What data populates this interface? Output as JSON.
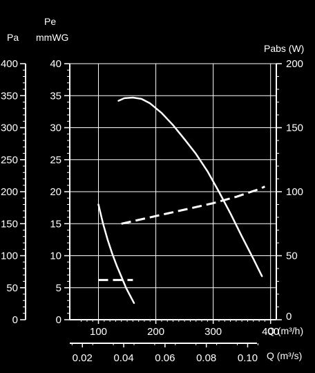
{
  "chart_data": {
    "type": "line",
    "colors": {
      "background": "#000000",
      "foreground": "#ffffff"
    },
    "grid": true,
    "axes": {
      "x_flow_m3h": {
        "label": "Q (m³/h)",
        "range": [
          50,
          410
        ],
        "ticks": [
          100,
          200,
          300,
          400
        ],
        "tick_labels": [
          "100",
          "200",
          "300",
          "400"
        ]
      },
      "x_flow_m3s": {
        "label": "Q (m³/s)",
        "ticks": [
          0.02,
          0.04,
          0.06,
          0.08,
          0.1
        ],
        "tick_labels": [
          "0.02",
          "0.04",
          "0.06",
          "0.08",
          "0.10"
        ]
      },
      "y_pressure_pa": {
        "label": "Pa",
        "range": [
          0,
          400
        ],
        "ticks": [
          0,
          50,
          100,
          150,
          200,
          250,
          300,
          350,
          400
        ],
        "tick_labels": [
          "0",
          "50",
          "100",
          "150",
          "200",
          "250",
          "300",
          "350",
          "400"
        ]
      },
      "y_pressure_mmwg": {
        "label_top": "Pe",
        "label": "mmWG",
        "range": [
          0,
          40
        ],
        "ticks": [
          0,
          5,
          10,
          15,
          20,
          25,
          30,
          35,
          40
        ],
        "tick_labels": [
          "0",
          "5",
          "10",
          "15",
          "20",
          "25",
          "30",
          "35",
          "40"
        ]
      },
      "y_power_w": {
        "label": "Pabs (W)",
        "range": [
          0,
          200
        ],
        "ticks": [
          0,
          50,
          100,
          150,
          200
        ],
        "tick_labels": [
          "0",
          "50",
          "100",
          "150",
          "200"
        ]
      }
    },
    "series": [
      {
        "style": "solid",
        "axis": "y_pressure_mmwg",
        "x": [
          135,
          145,
          160,
          175,
          190,
          210,
          230,
          250,
          270,
          290,
          310,
          330,
          350,
          370,
          385
        ],
        "y": [
          34.2,
          34.6,
          34.7,
          34.5,
          33.8,
          32.3,
          30.4,
          28.2,
          25.9,
          23.2,
          20.0,
          16.6,
          13.0,
          9.5,
          6.8
        ]
      },
      {
        "style": "dashed",
        "axis": "y_power_w",
        "x": [
          140,
          180,
          220,
          260,
          300,
          340,
          380,
          390
        ],
        "y": [
          75,
          79,
          83,
          87,
          91,
          96,
          102,
          104
        ]
      },
      {
        "style": "solid",
        "axis": "y_pressure_mmwg",
        "x": [
          100,
          108,
          116,
          124,
          132,
          140,
          148,
          155,
          162
        ],
        "y": [
          18.0,
          15.0,
          12.5,
          10.3,
          8.4,
          6.7,
          5.0,
          3.8,
          2.6
        ]
      },
      {
        "style": "dashed",
        "axis": "y_power_w",
        "x": [
          100,
          130,
          160
        ],
        "y": [
          31,
          31,
          31
        ]
      }
    ]
  }
}
